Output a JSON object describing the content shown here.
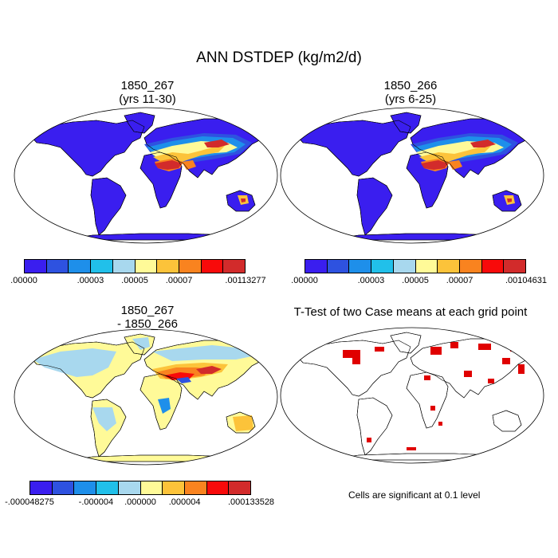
{
  "title": "ANN DSTDEP (kg/m2/d)",
  "panels": [
    {
      "id": "p1",
      "title_line1": "1850_267",
      "title_line2": "(yrs 11-30)"
    },
    {
      "id": "p2",
      "title_line1": "1850_266",
      "title_line2": "(yrs 6-25)"
    },
    {
      "id": "p3",
      "title_line1": "1850_267",
      "title_line2": "- 1850_266"
    },
    {
      "id": "p4",
      "title_line1": "T-Test of two Case means at each grid point",
      "title_line2": ""
    }
  ],
  "colorbars": [
    {
      "id": "cb1",
      "colors": [
        "#3a1eef",
        "#2e52e0",
        "#1e8fea",
        "#21c0ea",
        "#a8d8ee",
        "#fffa98",
        "#fcc33a",
        "#f9831f",
        "#f80a0a",
        "#d22b2b"
      ],
      "labels": [
        ".00000",
        ".00003",
        ".00005",
        ".00007",
        ".00113277"
      ]
    },
    {
      "id": "cb2",
      "colors": [
        "#3a1eef",
        "#2e52e0",
        "#1e8fea",
        "#21c0ea",
        "#a8d8ee",
        "#fffa98",
        "#fcc33a",
        "#f9831f",
        "#f80a0a",
        "#d22b2b"
      ],
      "labels": [
        ".00000",
        ".00003",
        ".00005",
        ".00007",
        ".00104631"
      ]
    },
    {
      "id": "cb3",
      "colors": [
        "#3a1eef",
        "#2e52e0",
        "#1e8fea",
        "#21c0ea",
        "#a8d8ee",
        "#fffa98",
        "#fcc33a",
        "#f9831f",
        "#f80a0a",
        "#d22b2b"
      ],
      "labels": [
        "-.000048275",
        "-.000004",
        ".000000",
        ".000004",
        ".000133528"
      ]
    }
  ],
  "note": "Cells are significant at 0.1 level",
  "colors": {
    "low": "#3a1eef",
    "ocean": "#ffffff",
    "coast": "#000000",
    "significant": "#e00000"
  }
}
